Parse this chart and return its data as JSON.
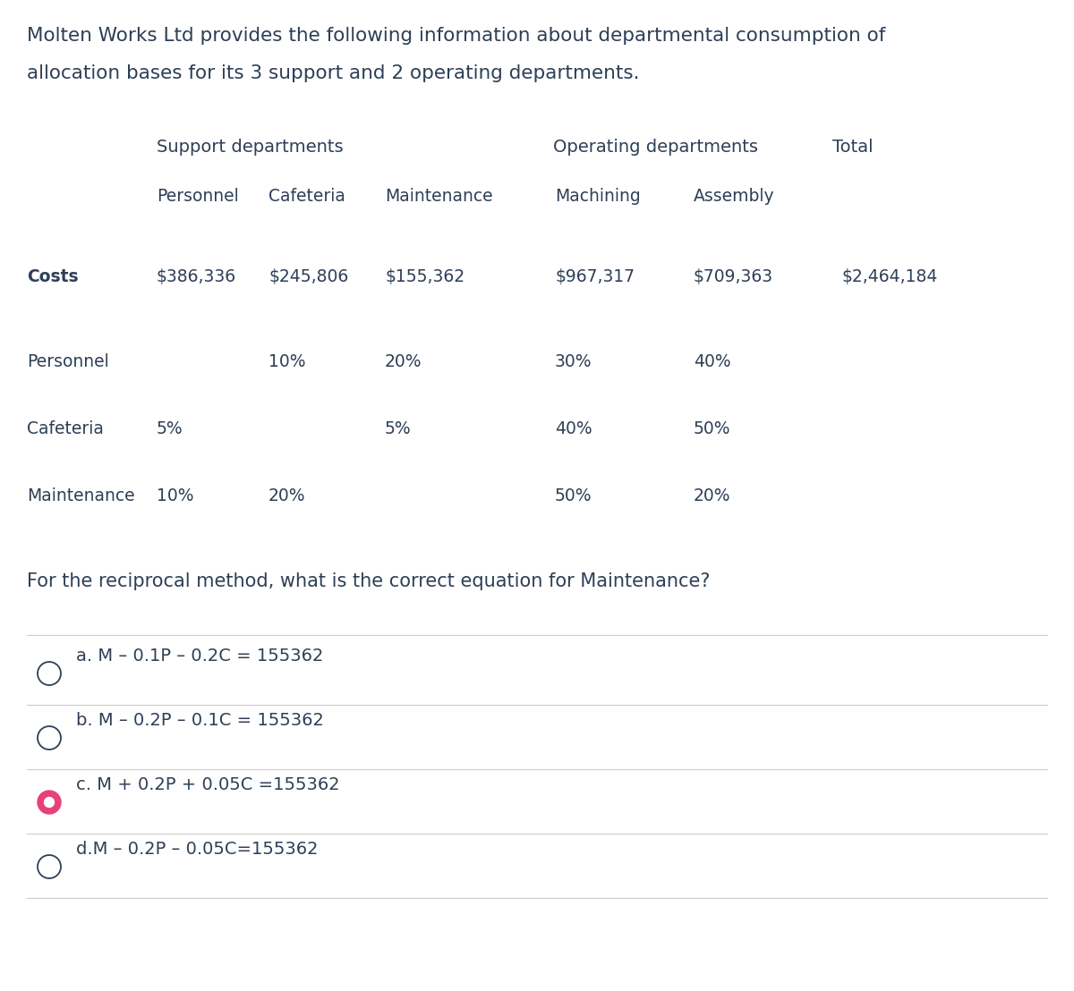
{
  "bg_color": "#ffffff",
  "text_color": "#2e3f56",
  "intro_line1": "Molten Works Ltd provides the following information about departmental consumption of",
  "intro_line2": "allocation bases for its 3 support and 2 operating departments.",
  "support_label": "Support departments",
  "operating_label": "Operating departments",
  "total_label": "Total",
  "col_headers": [
    "Personnel",
    "Cafeteria",
    "Maintenance",
    "Machining",
    "Assembly"
  ],
  "costs_label": "Costs",
  "costs_values": [
    "$386,336",
    "$245,806",
    "$155,362",
    "$967,317",
    "$709,363",
    "$2,464,184"
  ],
  "row_labels": [
    "Personnel",
    "Cafeteria",
    "Maintenance"
  ],
  "table_data": [
    [
      "",
      "10%",
      "20%",
      "30%",
      "40%",
      ""
    ],
    [
      "5%",
      "",
      "5%",
      "40%",
      "50%",
      ""
    ],
    [
      "10%",
      "20%",
      "",
      "50%",
      "20%",
      ""
    ]
  ],
  "question": "For the reciprocal method, what is the correct equation for Maintenance?",
  "options": [
    {
      "label": "a. M – 0.1P – 0.2C = 155362",
      "selected": false
    },
    {
      "label": "b. M – 0.2P – 0.1C = 155362",
      "selected": false
    },
    {
      "label": "c. M + 0.2P + 0.05C =155362",
      "selected": true
    },
    {
      "label": "d.M – 0.2P – 0.05C=155362",
      "selected": false
    }
  ],
  "selected_color": "#e8417a",
  "unselected_color": "#2e3f56",
  "line_color": "#cccccc",
  "font_family": "DejaVu Sans",
  "intro_fontsize": 15.5,
  "header_fontsize": 14,
  "col_fontsize": 13.5,
  "data_fontsize": 13.5,
  "question_fontsize": 15,
  "option_fontsize": 14
}
